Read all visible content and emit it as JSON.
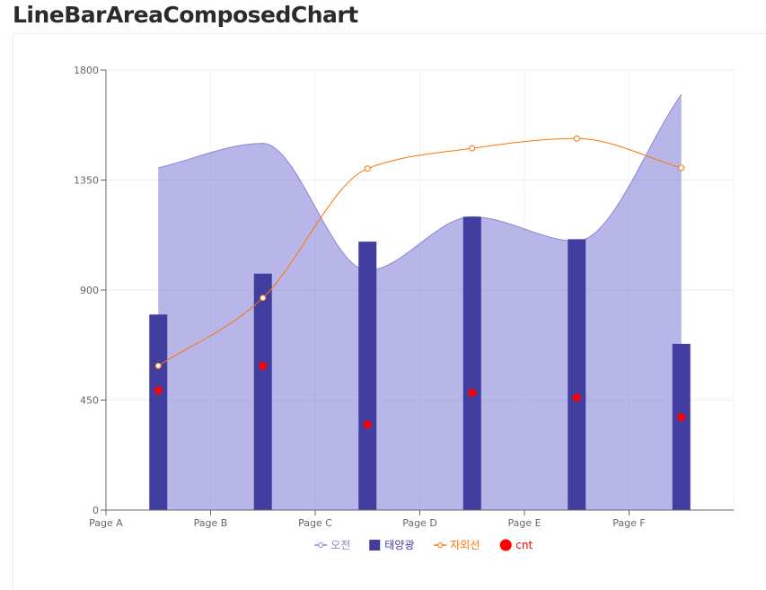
{
  "title": "LineBarAreaComposedChart",
  "colors": {
    "area": "#8884d8",
    "bar": "#413ea0",
    "line": "#ff7300",
    "scatter": "#ff0000"
  },
  "chart_data": {
    "type": "composed",
    "categories": [
      "Page A",
      "Page B",
      "Page C",
      "Page D",
      "Page E",
      "Page F"
    ],
    "yaxis_ticks": [
      "0",
      "450",
      "900",
      "1350",
      "1800"
    ],
    "ylim": [
      0,
      1800
    ],
    "grid": true,
    "legend_position": "bottom",
    "series": [
      {
        "name": "오전",
        "type": "area",
        "values": [
          1400,
          1500,
          980,
          1200,
          1100,
          1700
        ]
      },
      {
        "name": "태양광",
        "type": "bar",
        "values": [
          800,
          967,
          1098,
          1200,
          1108,
          680
        ]
      },
      {
        "name": "자외선",
        "type": "line",
        "values": [
          590,
          868,
          1397,
          1480,
          1520,
          1400
        ]
      },
      {
        "name": "cnt",
        "type": "scatter",
        "values": [
          490,
          590,
          350,
          480,
          460,
          380
        ]
      }
    ]
  }
}
